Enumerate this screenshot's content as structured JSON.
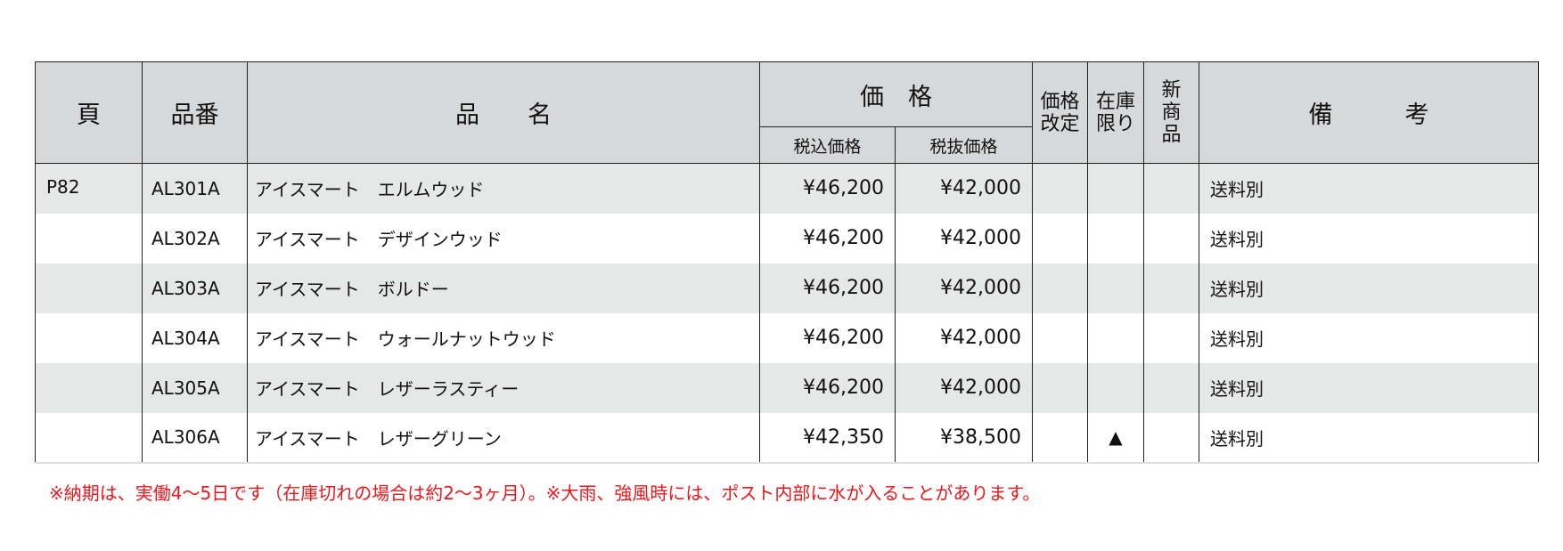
{
  "headers": {
    "page": "頁",
    "code": "品番",
    "name": "品　　名",
    "price": "価　格",
    "price_incl": "税込価格",
    "price_excl": "税抜価格",
    "price_revised": "価格改定",
    "stock_limited": "在庫限り",
    "new_product": "新商品",
    "remarks": "備　　　考"
  },
  "rows": [
    {
      "page": "P82",
      "code": "AL301A",
      "name": "アイスマート　エルムウッド",
      "price_incl": "¥46,200",
      "price_excl": "¥42,000",
      "revised": "",
      "stock": "",
      "new": "",
      "remarks": "送料別"
    },
    {
      "page": "",
      "code": "AL302A",
      "name": "アイスマート　デザインウッド",
      "price_incl": "¥46,200",
      "price_excl": "¥42,000",
      "revised": "",
      "stock": "",
      "new": "",
      "remarks": "送料別"
    },
    {
      "page": "",
      "code": "AL303A",
      "name": "アイスマート　ボルドー",
      "price_incl": "¥46,200",
      "price_excl": "¥42,000",
      "revised": "",
      "stock": "",
      "new": "",
      "remarks": "送料別"
    },
    {
      "page": "",
      "code": "AL304A",
      "name": "アイスマート　ウォールナットウッド",
      "price_incl": "¥46,200",
      "price_excl": "¥42,000",
      "revised": "",
      "stock": "",
      "new": "",
      "remarks": "送料別"
    },
    {
      "page": "",
      "code": "AL305A",
      "name": "アイスマート　レザーラスティー",
      "price_incl": "¥46,200",
      "price_excl": "¥42,000",
      "revised": "",
      "stock": "",
      "new": "",
      "remarks": "送料別"
    },
    {
      "page": "",
      "code": "AL306A",
      "name": "アイスマート　レザーグリーン",
      "price_incl": "¥42,350",
      "price_excl": "¥38,500",
      "revised": "",
      "stock": "▲",
      "new": "",
      "remarks": "送料別"
    }
  ],
  "footnote": "※納期は、実働4〜5日です（在庫切れの場合は約2〜3ヶ月）。※大雨、強風時には、ポスト内部に水が入ることがあります。",
  "colors": {
    "header_bg": "#d7d8da",
    "row_alt_bg": "#e6e7e7",
    "footnote": "#e8191e"
  }
}
